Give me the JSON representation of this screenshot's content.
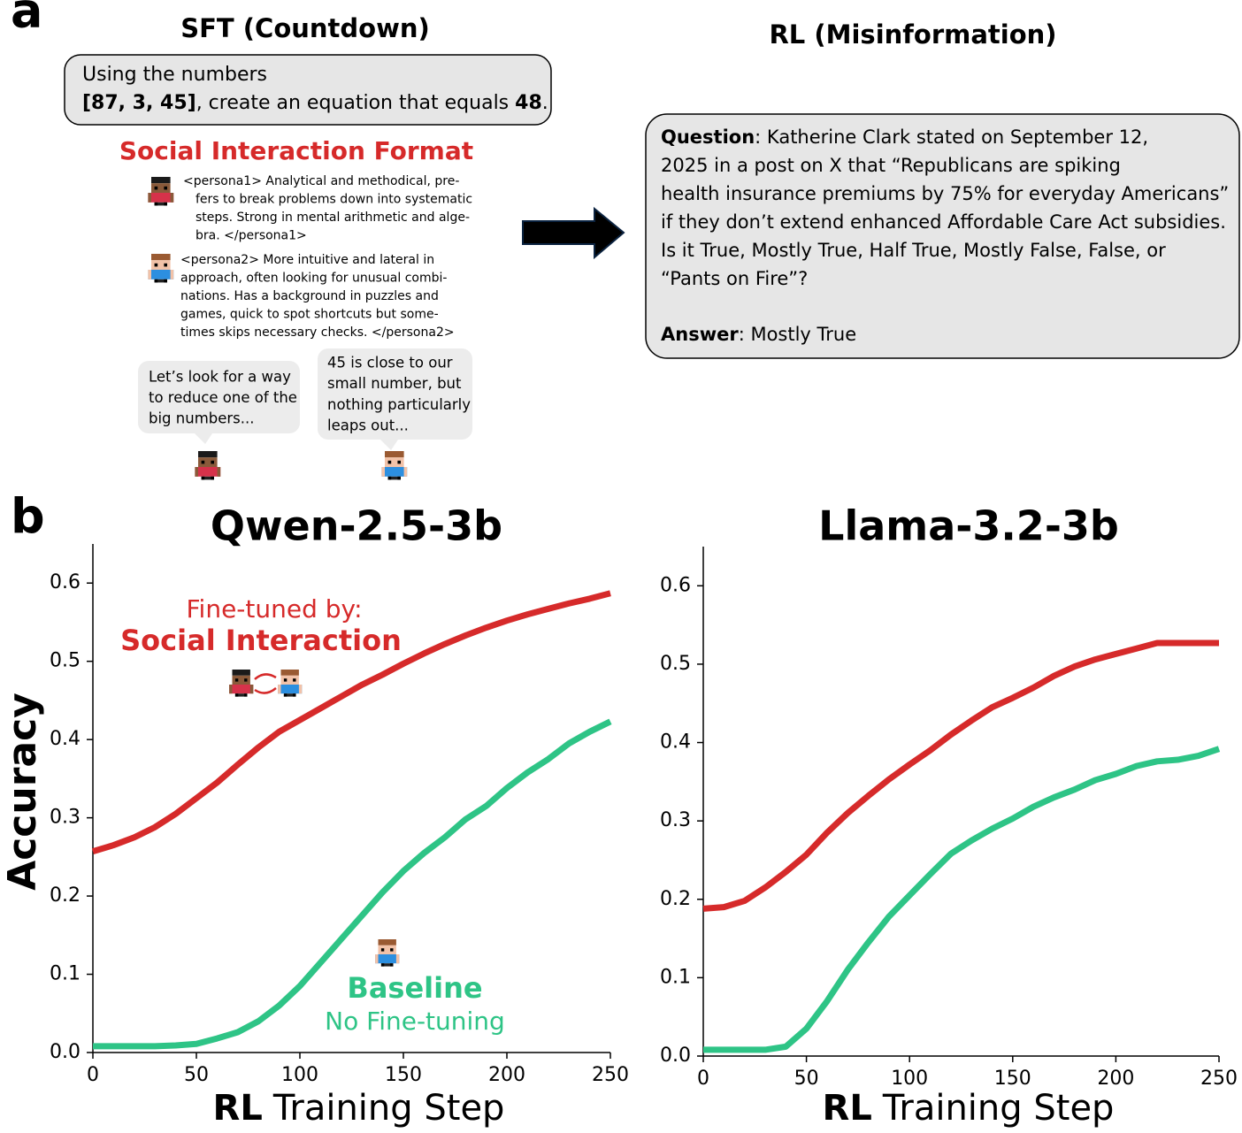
{
  "panel_a": {
    "label": "a",
    "sft_title": "SFT (Countdown)",
    "prompt_line1": "Using the numbers",
    "prompt_numbers": "[87, 3, 45]",
    "prompt_middle": ", create an equation that equals ",
    "prompt_target": "48",
    "prompt_end": ".",
    "format_title": "Social Interaction Format",
    "persona1": [
      "<persona1> Analytical and methodical, pre-",
      "fers to break problems down into systematic",
      "steps. Strong in mental arithmetic and alge-",
      "bra. </persona1>"
    ],
    "persona2": [
      "<persona2> More intuitive and lateral in",
      "approach, often looking for unusual combi-",
      "nations. Has a background in puzzles and",
      "games, quick to spot shortcuts but some-",
      "times skips necessary checks. </persona2>"
    ],
    "bubble1": [
      "Let’s look for a way",
      "to reduce one of the",
      "big numbers..."
    ],
    "bubble2": [
      "45 is close to our",
      "small number, but",
      "nothing particularly",
      "leaps out..."
    ],
    "rl_title": "RL (Misinformation)",
    "question_label": "Question",
    "question_lines": [
      ": Katherine Clark stated on September 12,",
      "2025 in a post on X that  “Republicans are spiking",
      "health insurance premiums by 75% for everyday Americans”",
      "if they don’t extend enhanced Affordable Care Act subsidies.",
      "Is it True, Mostly True, Half True, Mostly False, False, or",
      "“Pants on Fire”?"
    ],
    "answer_label": "Answer",
    "answer_text": ": Mostly True"
  },
  "panel_b": {
    "label": "b"
  },
  "chart_data": [
    {
      "type": "line",
      "title": "Qwen-2.5-3b",
      "ylabel": "Accuracy",
      "xlabel": {
        "bold": "RL",
        "rest": "Training Step"
      },
      "x": [
        0,
        10,
        20,
        30,
        40,
        50,
        60,
        70,
        80,
        90,
        100,
        110,
        120,
        130,
        140,
        150,
        160,
        170,
        180,
        190,
        200,
        210,
        220,
        230,
        240,
        250
      ],
      "series": [
        {
          "name": "Social Interaction",
          "annotation": "Fine-tuned by:",
          "color": "#d62a2a",
          "values": [
            0.257,
            0.265,
            0.275,
            0.288,
            0.305,
            0.325,
            0.345,
            0.368,
            0.39,
            0.41,
            0.425,
            0.44,
            0.455,
            0.47,
            0.483,
            0.497,
            0.51,
            0.522,
            0.533,
            0.543,
            0.552,
            0.56,
            0.567,
            0.574,
            0.58,
            0.587
          ]
        },
        {
          "name": "Baseline",
          "annotation": "No Fine-tuning",
          "color": "#2ec486",
          "values": [
            0.008,
            0.008,
            0.008,
            0.008,
            0.009,
            0.011,
            0.018,
            0.026,
            0.04,
            0.06,
            0.085,
            0.115,
            0.145,
            0.175,
            0.205,
            0.232,
            0.255,
            0.275,
            0.298,
            0.315,
            0.338,
            0.358,
            0.375,
            0.395,
            0.41,
            0.423
          ]
        }
      ],
      "xlim": [
        0,
        250
      ],
      "xticks": [
        0,
        50,
        100,
        150,
        200,
        250
      ],
      "ylim": [
        0,
        0.65
      ],
      "yticks": [
        {
          "value": 0,
          "label": "0.0"
        },
        0.1,
        0.2,
        0.3,
        0.4,
        0.5,
        0.6
      ]
    },
    {
      "type": "line",
      "title": "Llama-3.2-3b",
      "xlabel": {
        "bold": "RL",
        "rest": "Training Step"
      },
      "x": [
        0,
        10,
        20,
        30,
        40,
        50,
        60,
        70,
        80,
        90,
        100,
        110,
        120,
        130,
        140,
        150,
        160,
        170,
        180,
        190,
        200,
        210,
        220,
        230,
        240,
        250
      ],
      "series": [
        {
          "color": "#d62a2a",
          "values": [
            0.188,
            0.19,
            0.198,
            0.215,
            0.235,
            0.257,
            0.285,
            0.31,
            0.332,
            0.353,
            0.372,
            0.39,
            0.41,
            0.428,
            0.445,
            0.457,
            0.47,
            0.485,
            0.497,
            0.506,
            0.513,
            0.52,
            0.527,
            0.527,
            0.527,
            0.527
          ]
        },
        {
          "color": "#2ec486",
          "values": [
            0.008,
            0.008,
            0.008,
            0.008,
            0.012,
            0.035,
            0.07,
            0.11,
            0.145,
            0.178,
            0.205,
            0.232,
            0.258,
            0.275,
            0.29,
            0.303,
            0.318,
            0.33,
            0.34,
            0.352,
            0.36,
            0.37,
            0.376,
            0.378,
            0.383,
            0.392
          ]
        }
      ],
      "xlim": [
        0,
        250
      ],
      "xticks": [
        0,
        50,
        100,
        150,
        200,
        250
      ],
      "ylim": [
        0,
        0.65
      ],
      "yticks": [
        {
          "value": 0,
          "label": "0.0"
        },
        0.1,
        0.2,
        0.3,
        0.4,
        0.5,
        0.6
      ]
    }
  ]
}
